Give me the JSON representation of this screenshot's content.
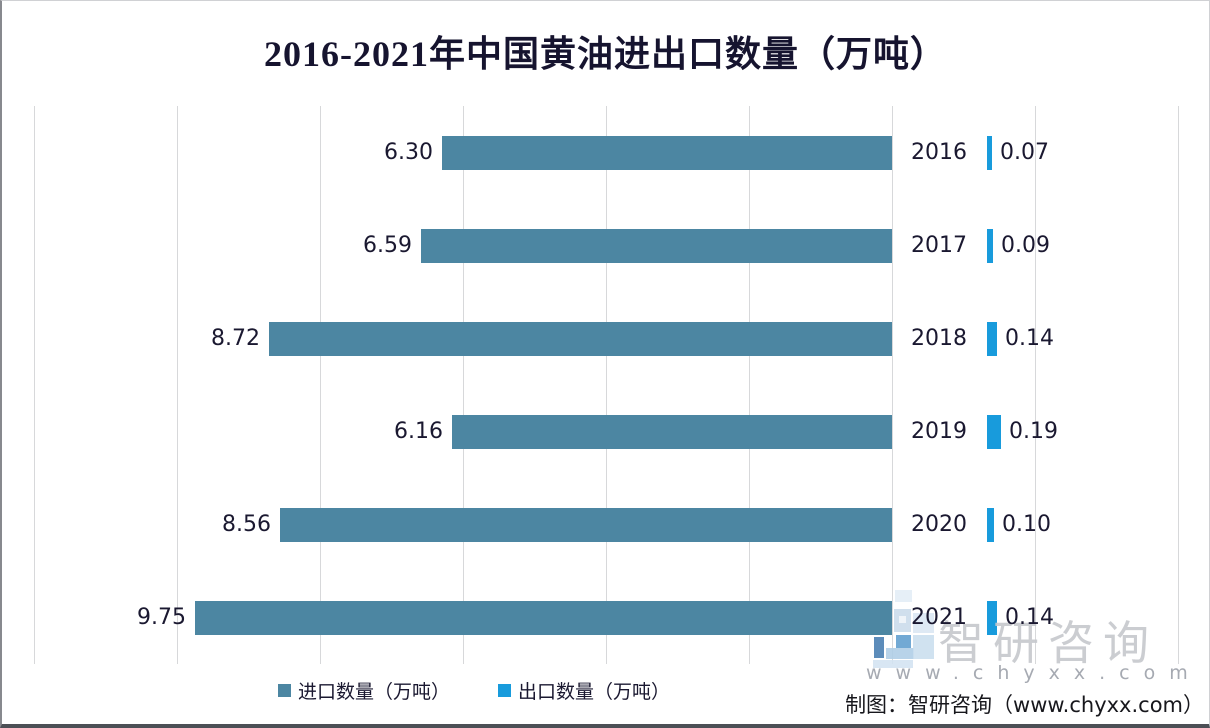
{
  "chart_data": {
    "type": "bar",
    "orientation": "horizontal",
    "title": "2016-2021年中国黄油进出口数量（万吨）",
    "categories": [
      "2016",
      "2017",
      "2018",
      "2019",
      "2020",
      "2021"
    ],
    "series": [
      {
        "name": "进口数量（万吨）",
        "values": [
          6.3,
          6.59,
          8.72,
          6.16,
          8.56,
          9.75
        ],
        "labels": [
          "6.30",
          "6.59",
          "8.72",
          "6.16",
          "8.56",
          "9.75"
        ],
        "color": "#4c86a2",
        "side": "left-extending"
      },
      {
        "name": "出口数量（万吨）",
        "values": [
          0.07,
          0.09,
          0.14,
          0.19,
          0.1,
          0.14
        ],
        "labels": [
          "0.07",
          "0.09",
          "0.14",
          "0.19",
          "0.10",
          "0.14"
        ],
        "color": "#189bdc",
        "side": "right-extending"
      }
    ],
    "xlabel": "",
    "ylabel": "",
    "xlim": [
      0,
      12
    ],
    "gridline_step_units": 2,
    "grid": true,
    "legend_position": "bottom",
    "data_labels_shown": true
  },
  "attribution": "制图：智研咨询（www.chyxx.com）",
  "watermark": {
    "brand": "智研咨询",
    "url": "www.chyxx.com"
  },
  "colors": {
    "import_bar": "#4c86a2",
    "export_bar": "#189bdc",
    "title_text": "#16142f",
    "label_text": "#1a1830",
    "gridline": "#d7d8da",
    "watermark_gray": "#c6c8cd"
  }
}
